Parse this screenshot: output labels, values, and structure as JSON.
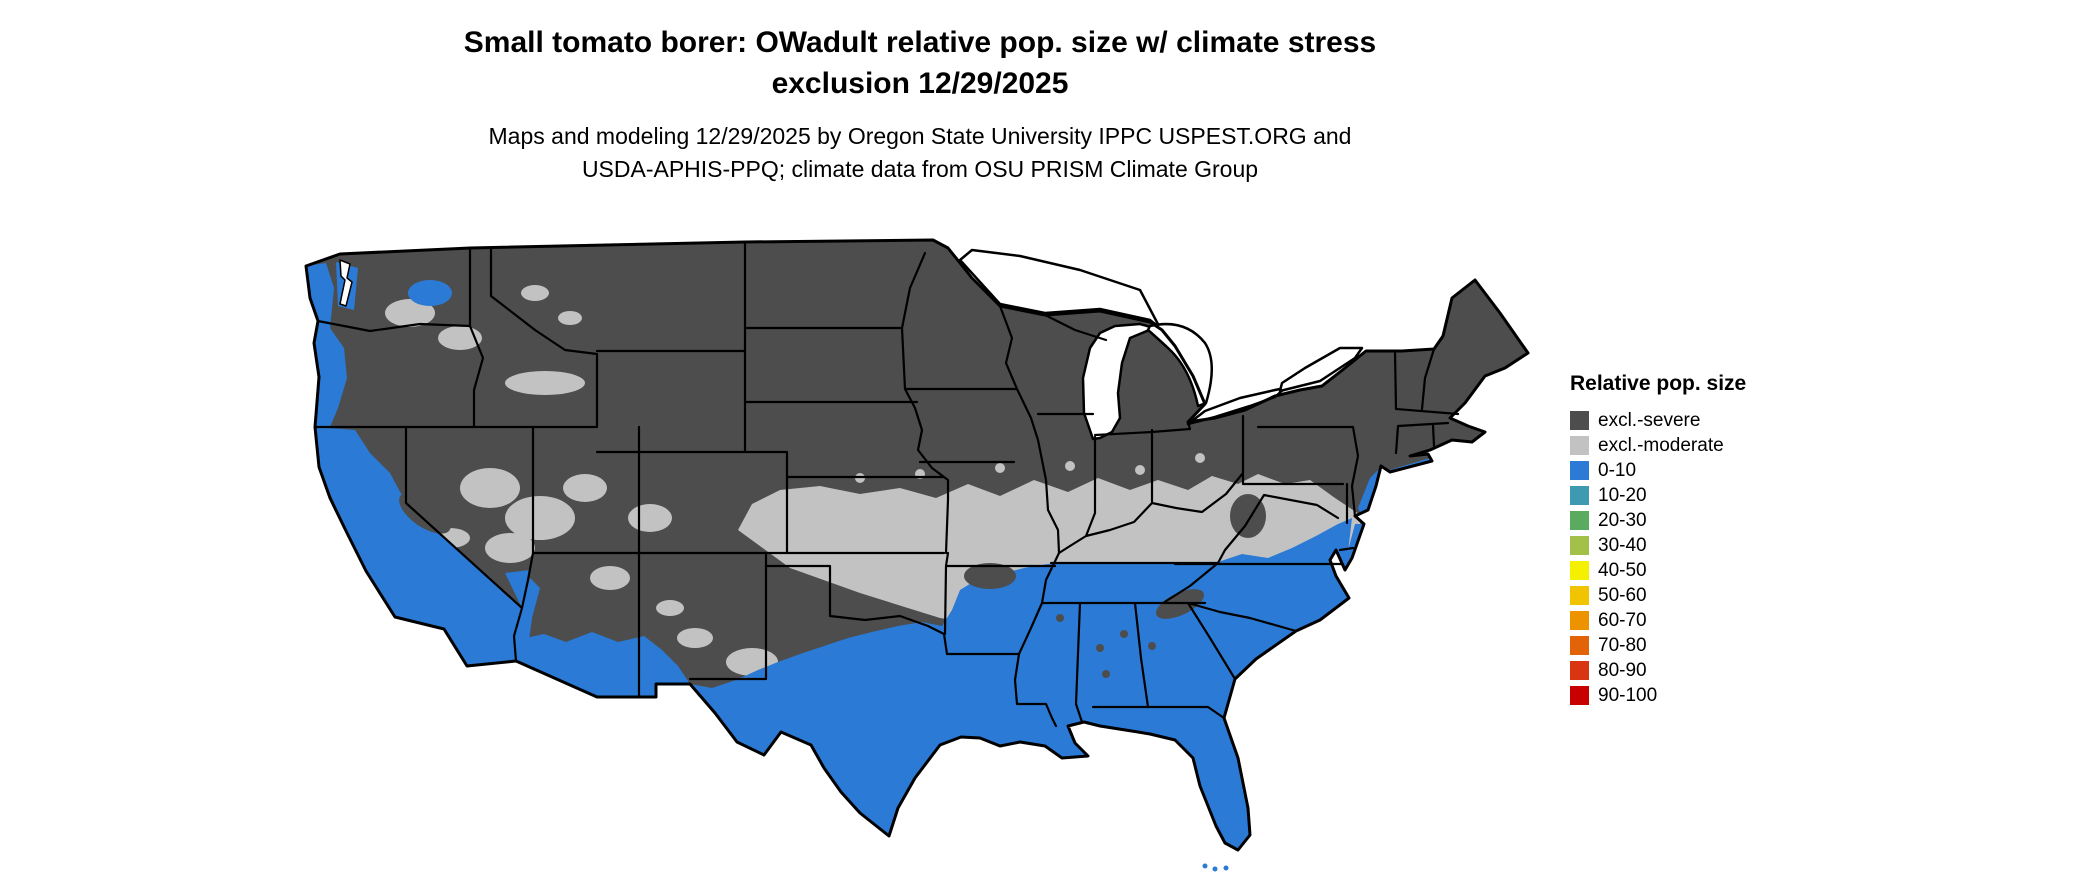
{
  "title": {
    "line1": "Small tomato borer: OWadult relative pop. size w/ climate stress",
    "line2": "exclusion 12/29/2025"
  },
  "subtitle": {
    "line1": "Maps and modeling 12/29/2025 by Oregon State University IPPC USPEST.ORG and",
    "line2": "USDA-APHIS-PPQ; climate data from OSU PRISM Climate Group"
  },
  "legend": {
    "title": "Relative pop. size",
    "entries": [
      {
        "label": "excl.-severe",
        "color": "#4d4d4d"
      },
      {
        "label": "excl.-moderate",
        "color": "#c2c2c2"
      },
      {
        "label": "0-10",
        "color": "#2b7bd6"
      },
      {
        "label": "10-20",
        "color": "#3d9ab0"
      },
      {
        "label": "20-30",
        "color": "#5aaa5f"
      },
      {
        "label": "30-40",
        "color": "#a3c148"
      },
      {
        "label": "40-50",
        "color": "#f5f000"
      },
      {
        "label": "50-60",
        "color": "#f0c400"
      },
      {
        "label": "60-70",
        "color": "#ee9300"
      },
      {
        "label": "70-80",
        "color": "#e36309"
      },
      {
        "label": "80-90",
        "color": "#d93511"
      },
      {
        "label": "90-100",
        "color": "#c90000"
      }
    ]
  },
  "map": {
    "description": "Conterminous US choropleth",
    "outline_color": "#000000",
    "water_color": "#ffffff"
  }
}
